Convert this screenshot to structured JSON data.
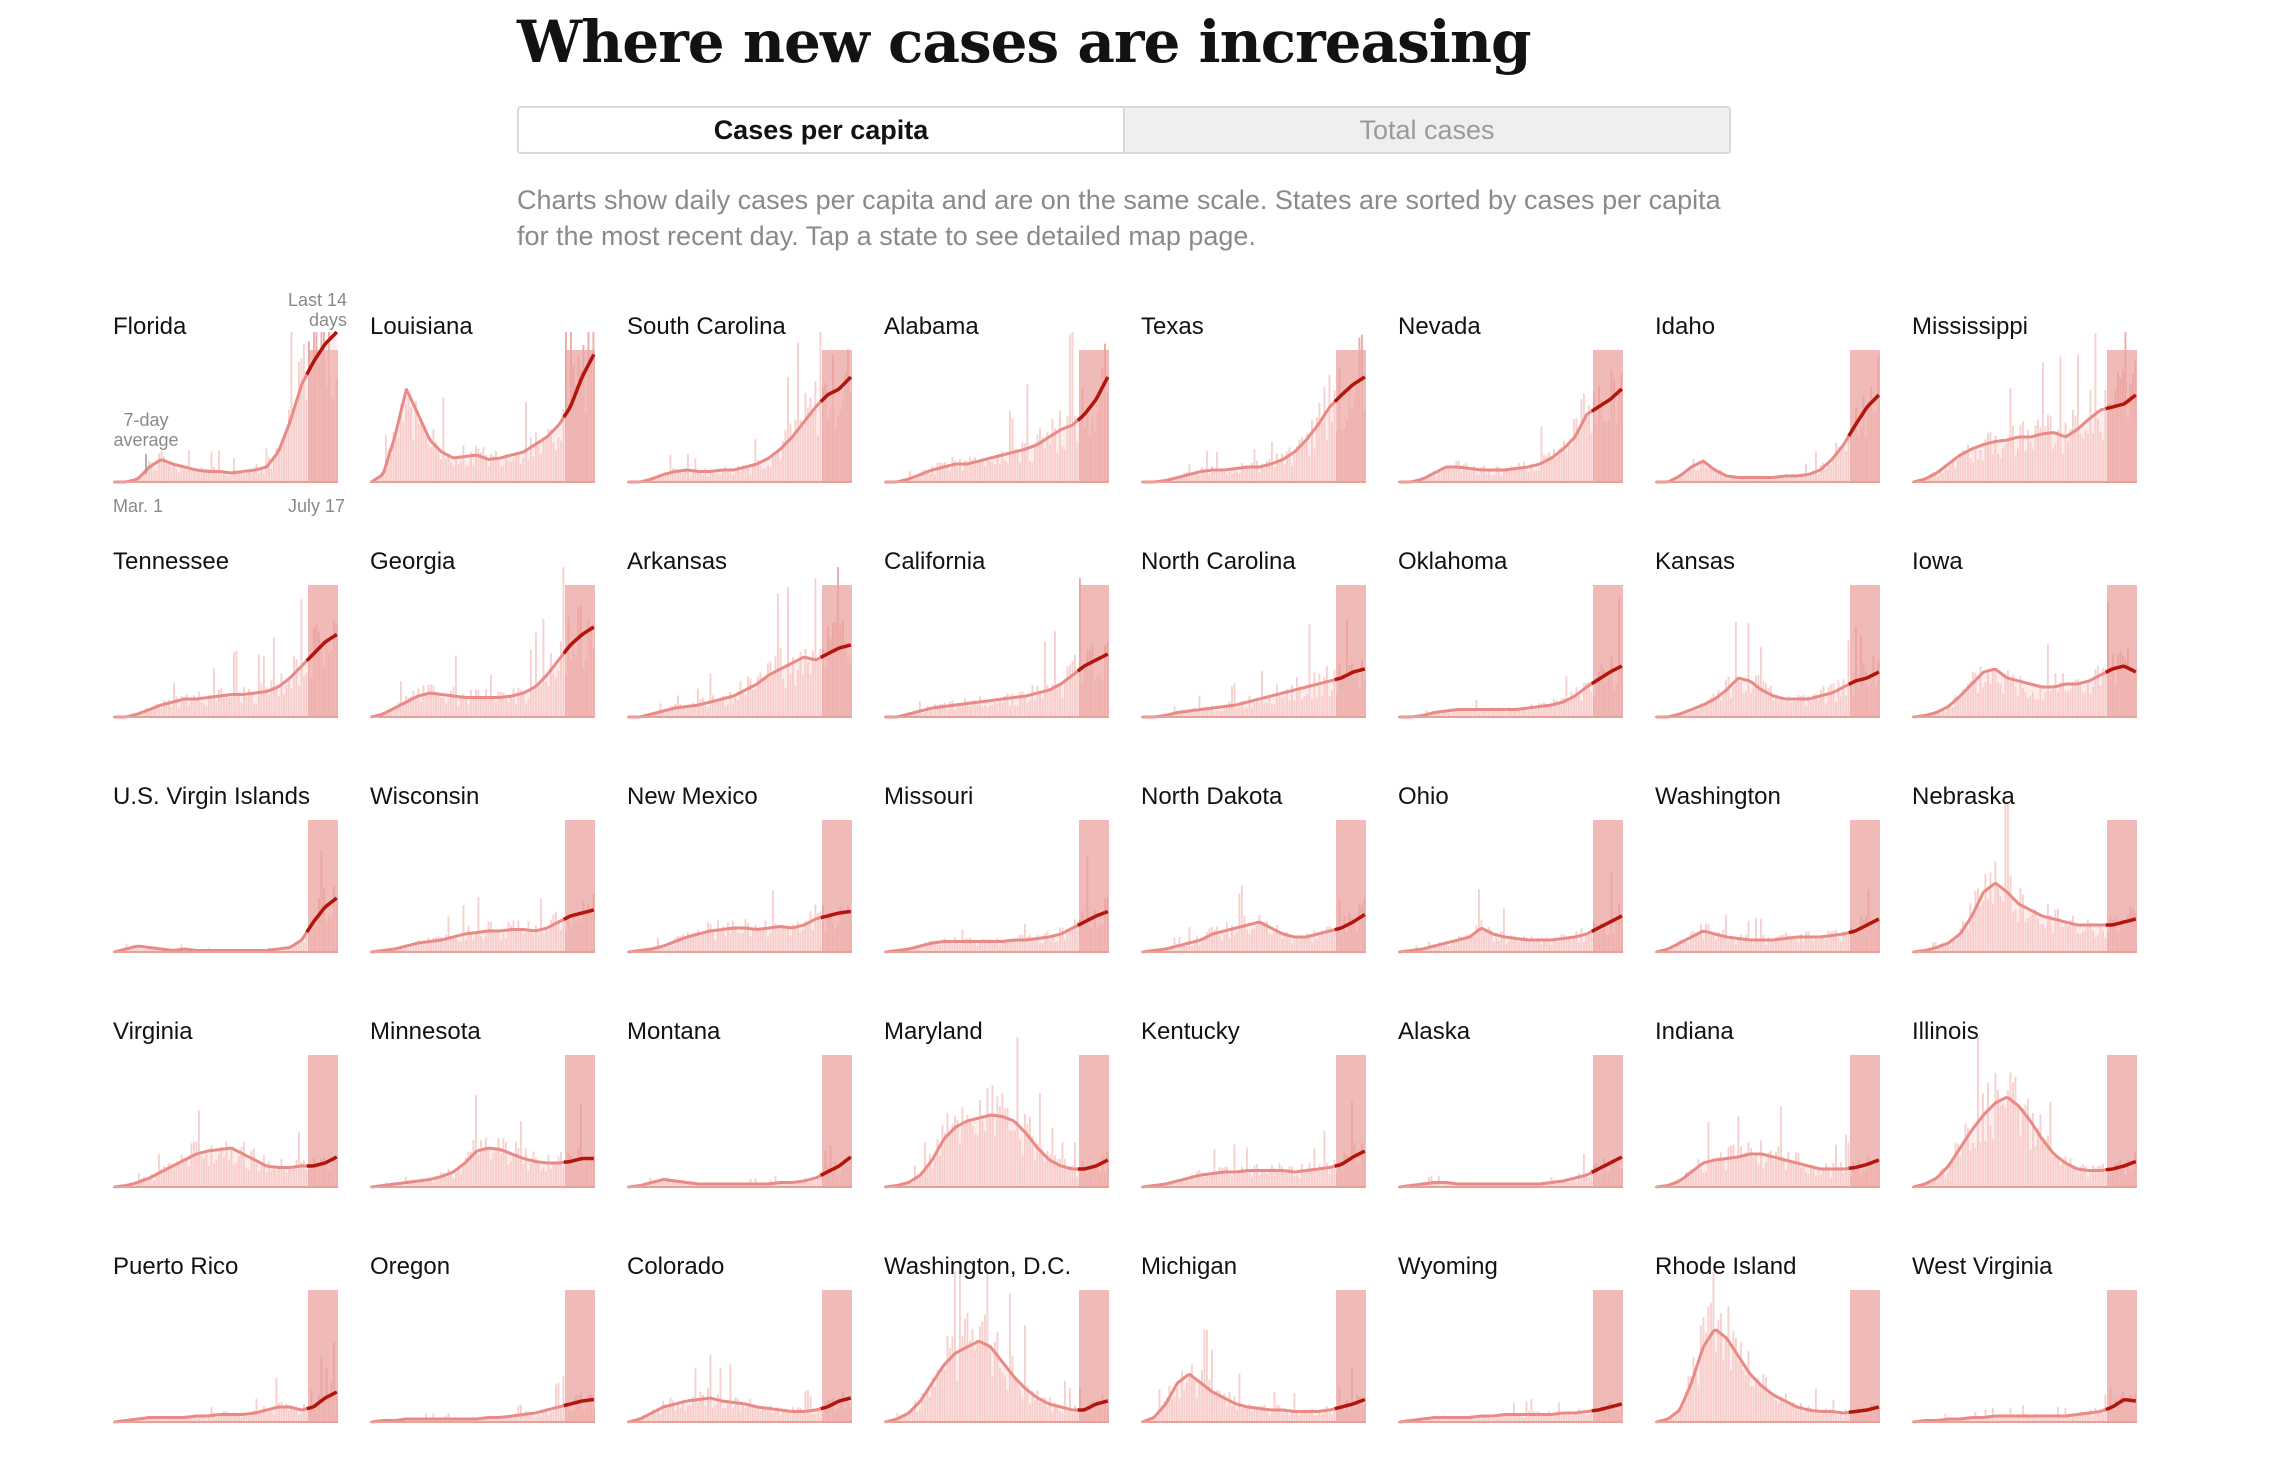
{
  "header": {
    "title": "Where new cases are increasing",
    "toggle": {
      "active_label": "Cases per capita",
      "inactive_label": "Total cases"
    },
    "description": "Charts show daily cases per capita and are on the same scale. States are sorted by cases per capita for the most recent day. Tap a state to see detailed map page."
  },
  "annotations": {
    "last14_line1": "Last 14",
    "last14_line2": "days",
    "avg_line1": "7-day",
    "avg_line2": "average",
    "start_date": "Mar. 1",
    "end_date": "July 17"
  },
  "colors": {
    "bar": "#f6c9c6",
    "recent_bar": "#eba3a0",
    "avg_line": "#e98a86",
    "recent_line": "#b3150d",
    "baseline": "#e8a09b"
  },
  "chart_data": {
    "type": "area",
    "x_range": [
      "Mar. 1",
      "July 17"
    ],
    "y_range_relative": [
      0,
      1
    ],
    "shared_scale": true,
    "highlight": "Last 14 days",
    "series": [
      {
        "name": "Florida",
        "values": [
          0,
          0,
          0.02,
          0.1,
          0.15,
          0.12,
          0.1,
          0.08,
          0.07,
          0.07,
          0.06,
          0.07,
          0.08,
          0.1,
          0.2,
          0.4,
          0.65,
          0.8,
          0.92,
          1.0
        ]
      },
      {
        "name": "Louisiana",
        "values": [
          0,
          0.05,
          0.3,
          0.62,
          0.45,
          0.28,
          0.2,
          0.16,
          0.17,
          0.18,
          0.15,
          0.16,
          0.18,
          0.2,
          0.25,
          0.3,
          0.38,
          0.5,
          0.7,
          0.85
        ]
      },
      {
        "name": "South Carolina",
        "values": [
          0,
          0,
          0.02,
          0.05,
          0.07,
          0.08,
          0.07,
          0.07,
          0.08,
          0.08,
          0.1,
          0.12,
          0.16,
          0.22,
          0.3,
          0.4,
          0.5,
          0.58,
          0.62,
          0.7
        ]
      },
      {
        "name": "Alabama",
        "values": [
          0,
          0,
          0.02,
          0.05,
          0.08,
          0.1,
          0.12,
          0.12,
          0.14,
          0.16,
          0.18,
          0.2,
          0.22,
          0.25,
          0.3,
          0.35,
          0.38,
          0.45,
          0.55,
          0.7
        ]
      },
      {
        "name": "Texas",
        "values": [
          0,
          0,
          0.01,
          0.03,
          0.05,
          0.07,
          0.08,
          0.08,
          0.09,
          0.1,
          0.1,
          0.12,
          0.15,
          0.2,
          0.28,
          0.38,
          0.5,
          0.58,
          0.65,
          0.7
        ]
      },
      {
        "name": "Nevada",
        "values": [
          0,
          0,
          0.02,
          0.06,
          0.1,
          0.1,
          0.09,
          0.08,
          0.08,
          0.08,
          0.09,
          0.1,
          0.12,
          0.16,
          0.22,
          0.3,
          0.45,
          0.5,
          0.55,
          0.62
        ]
      },
      {
        "name": "Idaho",
        "values": [
          0,
          0,
          0.04,
          0.1,
          0.14,
          0.08,
          0.04,
          0.03,
          0.03,
          0.03,
          0.03,
          0.04,
          0.04,
          0.05,
          0.08,
          0.15,
          0.25,
          0.38,
          0.5,
          0.58
        ]
      },
      {
        "name": "Mississippi",
        "values": [
          0,
          0.02,
          0.06,
          0.12,
          0.18,
          0.22,
          0.25,
          0.27,
          0.28,
          0.3,
          0.3,
          0.32,
          0.33,
          0.3,
          0.35,
          0.42,
          0.48,
          0.5,
          0.52,
          0.58
        ]
      },
      {
        "name": "Tennessee",
        "values": [
          0,
          0,
          0.02,
          0.05,
          0.08,
          0.1,
          0.12,
          0.12,
          0.13,
          0.14,
          0.15,
          0.15,
          0.16,
          0.17,
          0.2,
          0.26,
          0.34,
          0.42,
          0.5,
          0.55
        ]
      },
      {
        "name": "Georgia",
        "values": [
          0,
          0.02,
          0.06,
          0.1,
          0.14,
          0.16,
          0.15,
          0.14,
          0.13,
          0.13,
          0.13,
          0.13,
          0.14,
          0.16,
          0.2,
          0.28,
          0.38,
          0.48,
          0.55,
          0.6
        ]
      },
      {
        "name": "Arkansas",
        "values": [
          0,
          0,
          0.02,
          0.04,
          0.06,
          0.07,
          0.08,
          0.1,
          0.12,
          0.14,
          0.18,
          0.22,
          0.28,
          0.32,
          0.36,
          0.4,
          0.38,
          0.42,
          0.46,
          0.48
        ]
      },
      {
        "name": "California",
        "values": [
          0,
          0,
          0.02,
          0.04,
          0.06,
          0.07,
          0.08,
          0.09,
          0.1,
          0.11,
          0.12,
          0.13,
          0.14,
          0.16,
          0.18,
          0.22,
          0.28,
          0.34,
          0.38,
          0.42
        ]
      },
      {
        "name": "North Carolina",
        "values": [
          0,
          0,
          0.01,
          0.03,
          0.04,
          0.05,
          0.06,
          0.07,
          0.08,
          0.1,
          0.12,
          0.14,
          0.16,
          0.18,
          0.2,
          0.22,
          0.24,
          0.26,
          0.3,
          0.32
        ]
      },
      {
        "name": "Oklahoma",
        "values": [
          0,
          0,
          0.01,
          0.03,
          0.04,
          0.05,
          0.05,
          0.05,
          0.05,
          0.05,
          0.05,
          0.06,
          0.07,
          0.08,
          0.1,
          0.14,
          0.2,
          0.25,
          0.3,
          0.34
        ]
      },
      {
        "name": "Kansas",
        "values": [
          0,
          0,
          0.02,
          0.05,
          0.08,
          0.12,
          0.18,
          0.26,
          0.24,
          0.18,
          0.14,
          0.12,
          0.12,
          0.12,
          0.14,
          0.16,
          0.2,
          0.24,
          0.26,
          0.3
        ]
      },
      {
        "name": "Iowa",
        "values": [
          0,
          0.01,
          0.03,
          0.07,
          0.14,
          0.22,
          0.3,
          0.32,
          0.26,
          0.24,
          0.22,
          0.2,
          0.2,
          0.22,
          0.22,
          0.24,
          0.28,
          0.32,
          0.34,
          0.3
        ]
      },
      {
        "name": "U.S. Virgin Islands",
        "values": [
          0,
          0.02,
          0.04,
          0.03,
          0.02,
          0.01,
          0.02,
          0.01,
          0.01,
          0.01,
          0.01,
          0.01,
          0.01,
          0.01,
          0.02,
          0.03,
          0.08,
          0.2,
          0.3,
          0.36
        ]
      },
      {
        "name": "Wisconsin",
        "values": [
          0,
          0.01,
          0.02,
          0.04,
          0.06,
          0.07,
          0.08,
          0.1,
          0.12,
          0.13,
          0.14,
          0.14,
          0.15,
          0.15,
          0.14,
          0.16,
          0.2,
          0.24,
          0.26,
          0.28
        ]
      },
      {
        "name": "New Mexico",
        "values": [
          0,
          0.01,
          0.02,
          0.04,
          0.07,
          0.1,
          0.12,
          0.14,
          0.15,
          0.16,
          0.16,
          0.15,
          0.16,
          0.17,
          0.16,
          0.18,
          0.22,
          0.24,
          0.26,
          0.27
        ]
      },
      {
        "name": "Missouri",
        "values": [
          0,
          0.01,
          0.02,
          0.04,
          0.06,
          0.07,
          0.07,
          0.07,
          0.07,
          0.07,
          0.07,
          0.08,
          0.08,
          0.09,
          0.1,
          0.12,
          0.16,
          0.2,
          0.24,
          0.27
        ]
      },
      {
        "name": "North Dakota",
        "values": [
          0,
          0.01,
          0.02,
          0.04,
          0.06,
          0.08,
          0.12,
          0.14,
          0.16,
          0.18,
          0.2,
          0.16,
          0.12,
          0.1,
          0.1,
          0.12,
          0.14,
          0.16,
          0.2,
          0.25
        ]
      },
      {
        "name": "Ohio",
        "values": [
          0,
          0.01,
          0.02,
          0.04,
          0.06,
          0.08,
          0.1,
          0.16,
          0.12,
          0.1,
          0.09,
          0.08,
          0.08,
          0.08,
          0.09,
          0.1,
          0.12,
          0.16,
          0.2,
          0.24
        ]
      },
      {
        "name": "Washington",
        "values": [
          0,
          0.02,
          0.06,
          0.1,
          0.14,
          0.12,
          0.1,
          0.09,
          0.08,
          0.08,
          0.08,
          0.09,
          0.1,
          0.1,
          0.1,
          0.11,
          0.12,
          0.14,
          0.18,
          0.22
        ]
      },
      {
        "name": "Nebraska",
        "values": [
          0,
          0.01,
          0.03,
          0.06,
          0.12,
          0.24,
          0.4,
          0.46,
          0.4,
          0.32,
          0.28,
          0.24,
          0.22,
          0.2,
          0.18,
          0.18,
          0.18,
          0.18,
          0.2,
          0.22
        ]
      },
      {
        "name": "Virginia",
        "values": [
          0,
          0.01,
          0.03,
          0.06,
          0.1,
          0.14,
          0.18,
          0.22,
          0.24,
          0.25,
          0.26,
          0.22,
          0.18,
          0.14,
          0.13,
          0.13,
          0.14,
          0.14,
          0.16,
          0.2
        ]
      },
      {
        "name": "Minnesota",
        "values": [
          0,
          0.01,
          0.02,
          0.03,
          0.04,
          0.05,
          0.07,
          0.1,
          0.16,
          0.24,
          0.26,
          0.25,
          0.22,
          0.19,
          0.17,
          0.16,
          0.16,
          0.17,
          0.19,
          0.19
        ]
      },
      {
        "name": "Montana",
        "values": [
          0,
          0.01,
          0.03,
          0.05,
          0.04,
          0.03,
          0.02,
          0.02,
          0.02,
          0.02,
          0.02,
          0.02,
          0.02,
          0.03,
          0.03,
          0.04,
          0.06,
          0.1,
          0.14,
          0.2
        ]
      },
      {
        "name": "Maryland",
        "values": [
          0,
          0.01,
          0.03,
          0.08,
          0.18,
          0.32,
          0.4,
          0.44,
          0.46,
          0.48,
          0.47,
          0.44,
          0.36,
          0.26,
          0.18,
          0.14,
          0.12,
          0.12,
          0.14,
          0.18
        ]
      },
      {
        "name": "Kentucky",
        "values": [
          0,
          0.01,
          0.02,
          0.04,
          0.06,
          0.08,
          0.09,
          0.1,
          0.1,
          0.11,
          0.11,
          0.11,
          0.11,
          0.1,
          0.11,
          0.12,
          0.13,
          0.15,
          0.2,
          0.24
        ]
      },
      {
        "name": "Alaska",
        "values": [
          0,
          0.01,
          0.02,
          0.03,
          0.03,
          0.02,
          0.02,
          0.02,
          0.02,
          0.02,
          0.02,
          0.02,
          0.02,
          0.03,
          0.04,
          0.06,
          0.08,
          0.12,
          0.16,
          0.2
        ]
      },
      {
        "name": "Indiana",
        "values": [
          0,
          0.01,
          0.04,
          0.1,
          0.16,
          0.18,
          0.19,
          0.2,
          0.22,
          0.22,
          0.2,
          0.18,
          0.16,
          0.14,
          0.12,
          0.12,
          0.12,
          0.13,
          0.15,
          0.18
        ]
      },
      {
        "name": "Illinois",
        "values": [
          0,
          0.02,
          0.06,
          0.14,
          0.26,
          0.38,
          0.48,
          0.56,
          0.6,
          0.54,
          0.44,
          0.32,
          0.22,
          0.16,
          0.12,
          0.11,
          0.11,
          0.12,
          0.14,
          0.17
        ]
      },
      {
        "name": "Puerto Rico",
        "values": [
          0,
          0.01,
          0.02,
          0.03,
          0.03,
          0.03,
          0.03,
          0.04,
          0.04,
          0.05,
          0.05,
          0.05,
          0.06,
          0.08,
          0.1,
          0.1,
          0.08,
          0.1,
          0.16,
          0.2
        ]
      },
      {
        "name": "Oregon",
        "values": [
          0,
          0.01,
          0.01,
          0.02,
          0.02,
          0.02,
          0.02,
          0.02,
          0.02,
          0.02,
          0.03,
          0.03,
          0.04,
          0.05,
          0.06,
          0.08,
          0.1,
          0.12,
          0.14,
          0.15
        ]
      },
      {
        "name": "Colorado",
        "values": [
          0,
          0.02,
          0.06,
          0.1,
          0.12,
          0.14,
          0.15,
          0.16,
          0.14,
          0.13,
          0.12,
          0.1,
          0.09,
          0.08,
          0.07,
          0.07,
          0.08,
          0.1,
          0.14,
          0.16
        ]
      },
      {
        "name": "Washington, D.C.",
        "values": [
          0,
          0.02,
          0.06,
          0.14,
          0.26,
          0.38,
          0.46,
          0.5,
          0.54,
          0.5,
          0.4,
          0.3,
          0.22,
          0.16,
          0.12,
          0.1,
          0.08,
          0.08,
          0.12,
          0.14
        ]
      },
      {
        "name": "Michigan",
        "values": [
          0,
          0.03,
          0.12,
          0.26,
          0.32,
          0.26,
          0.2,
          0.16,
          0.12,
          0.1,
          0.09,
          0.08,
          0.08,
          0.07,
          0.07,
          0.07,
          0.08,
          0.1,
          0.12,
          0.15
        ]
      },
      {
        "name": "Wyoming",
        "values": [
          0,
          0.01,
          0.02,
          0.03,
          0.03,
          0.03,
          0.03,
          0.04,
          0.04,
          0.05,
          0.05,
          0.05,
          0.05,
          0.05,
          0.06,
          0.06,
          0.07,
          0.08,
          0.1,
          0.12
        ]
      },
      {
        "name": "Rhode Island",
        "values": [
          0,
          0.02,
          0.08,
          0.26,
          0.5,
          0.62,
          0.56,
          0.44,
          0.32,
          0.24,
          0.18,
          0.14,
          0.1,
          0.08,
          0.07,
          0.07,
          0.06,
          0.07,
          0.08,
          0.1
        ]
      },
      {
        "name": "West Virginia",
        "values": [
          0,
          0.01,
          0.01,
          0.02,
          0.02,
          0.03,
          0.03,
          0.04,
          0.04,
          0.04,
          0.04,
          0.04,
          0.04,
          0.04,
          0.05,
          0.06,
          0.07,
          0.1,
          0.15,
          0.14
        ]
      }
    ]
  }
}
